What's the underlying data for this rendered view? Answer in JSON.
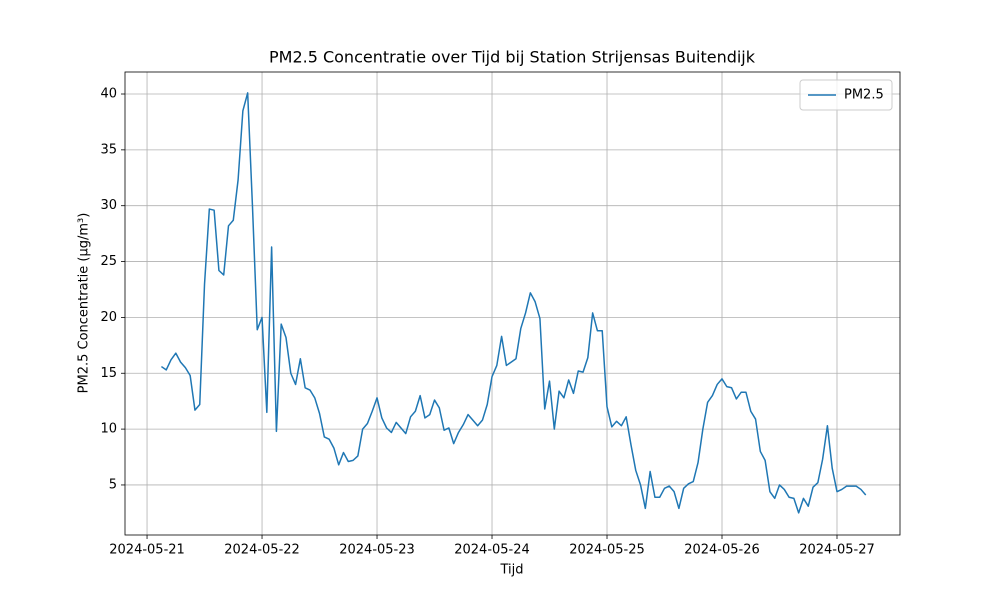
{
  "chart_data": {
    "type": "line",
    "title": "PM2.5 Concentratie over Tijd bij Station Strijensas Buitendijk",
    "x_label": "Tijd",
    "y_label": "PM2.5 Concentratie (µg/m³)",
    "x": [
      "2024-05-21 03:00",
      "2024-05-21 04:00",
      "2024-05-21 05:00",
      "2024-05-21 06:00",
      "2024-05-21 07:00",
      "2024-05-21 08:00",
      "2024-05-21 09:00",
      "2024-05-21 10:00",
      "2024-05-21 11:00",
      "2024-05-21 12:00",
      "2024-05-21 13:00",
      "2024-05-21 14:00",
      "2024-05-21 15:00",
      "2024-05-21 16:00",
      "2024-05-21 17:00",
      "2024-05-21 18:00",
      "2024-05-21 19:00",
      "2024-05-21 20:00",
      "2024-05-21 21:00",
      "2024-05-21 22:00",
      "2024-05-21 23:00",
      "2024-05-22 00:00",
      "2024-05-22 01:00",
      "2024-05-22 02:00",
      "2024-05-22 03:00",
      "2024-05-22 04:00",
      "2024-05-22 05:00",
      "2024-05-22 06:00",
      "2024-05-22 07:00",
      "2024-05-22 08:00",
      "2024-05-22 09:00",
      "2024-05-22 10:00",
      "2024-05-22 11:00",
      "2024-05-22 12:00",
      "2024-05-22 13:00",
      "2024-05-22 14:00",
      "2024-05-22 15:00",
      "2024-05-22 16:00",
      "2024-05-22 17:00",
      "2024-05-22 18:00",
      "2024-05-22 19:00",
      "2024-05-22 20:00",
      "2024-05-22 21:00",
      "2024-05-22 22:00",
      "2024-05-22 23:00",
      "2024-05-23 00:00",
      "2024-05-23 01:00",
      "2024-05-23 02:00",
      "2024-05-23 03:00",
      "2024-05-23 04:00",
      "2024-05-23 05:00",
      "2024-05-23 06:00",
      "2024-05-23 07:00",
      "2024-05-23 08:00",
      "2024-05-23 09:00",
      "2024-05-23 10:00",
      "2024-05-23 11:00",
      "2024-05-23 12:00",
      "2024-05-23 13:00",
      "2024-05-23 14:00",
      "2024-05-23 15:00",
      "2024-05-23 16:00",
      "2024-05-23 17:00",
      "2024-05-23 18:00",
      "2024-05-23 19:00",
      "2024-05-23 20:00",
      "2024-05-23 21:00",
      "2024-05-23 22:00",
      "2024-05-23 23:00",
      "2024-05-24 00:00",
      "2024-05-24 01:00",
      "2024-05-24 02:00",
      "2024-05-24 03:00",
      "2024-05-24 04:00",
      "2024-05-24 05:00",
      "2024-05-24 06:00",
      "2024-05-24 07:00",
      "2024-05-24 08:00",
      "2024-05-24 09:00",
      "2024-05-24 10:00",
      "2024-05-24 11:00",
      "2024-05-24 12:00",
      "2024-05-24 13:00",
      "2024-05-24 14:00",
      "2024-05-24 15:00",
      "2024-05-24 16:00",
      "2024-05-24 17:00",
      "2024-05-24 18:00",
      "2024-05-24 19:00",
      "2024-05-24 20:00",
      "2024-05-24 21:00",
      "2024-05-24 22:00",
      "2024-05-24 23:00",
      "2024-05-25 00:00",
      "2024-05-25 01:00",
      "2024-05-25 02:00",
      "2024-05-25 03:00",
      "2024-05-25 04:00",
      "2024-05-25 05:00",
      "2024-05-25 06:00",
      "2024-05-25 07:00",
      "2024-05-25 08:00",
      "2024-05-25 09:00",
      "2024-05-25 10:00",
      "2024-05-25 11:00",
      "2024-05-25 12:00",
      "2024-05-25 13:00",
      "2024-05-25 14:00",
      "2024-05-25 15:00",
      "2024-05-25 16:00",
      "2024-05-25 17:00",
      "2024-05-25 18:00",
      "2024-05-25 19:00",
      "2024-05-25 20:00",
      "2024-05-25 21:00",
      "2024-05-25 22:00",
      "2024-05-25 23:00",
      "2024-05-26 00:00",
      "2024-05-26 01:00",
      "2024-05-26 02:00",
      "2024-05-26 03:00",
      "2024-05-26 04:00",
      "2024-05-26 05:00",
      "2024-05-26 06:00",
      "2024-05-26 07:00",
      "2024-05-26 08:00",
      "2024-05-26 09:00",
      "2024-05-26 10:00",
      "2024-05-26 11:00",
      "2024-05-26 12:00",
      "2024-05-26 13:00",
      "2024-05-26 14:00",
      "2024-05-26 15:00",
      "2024-05-26 16:00",
      "2024-05-26 17:00",
      "2024-05-26 18:00",
      "2024-05-26 19:00",
      "2024-05-26 20:00",
      "2024-05-26 21:00",
      "2024-05-26 22:00",
      "2024-05-26 23:00",
      "2024-05-27 00:00",
      "2024-05-27 01:00",
      "2024-05-27 02:00",
      "2024-05-27 03:00",
      "2024-05-27 04:00",
      "2024-05-27 05:00",
      "2024-05-27 06:00"
    ],
    "series": [
      {
        "name": "PM2.5",
        "color": "#1f77b4",
        "values": [
          15.6,
          15.3,
          16.2,
          16.8,
          16.0,
          15.5,
          14.8,
          11.7,
          12.2,
          23.0,
          29.7,
          29.6,
          24.2,
          23.8,
          28.2,
          28.7,
          32.3,
          38.5,
          40.1,
          30.0,
          18.9,
          20.0,
          11.5,
          26.3,
          9.8,
          19.4,
          18.2,
          15.0,
          14.0,
          16.3,
          13.7,
          13.5,
          12.8,
          11.4,
          9.3,
          9.1,
          8.3,
          6.8,
          7.9,
          7.1,
          7.2,
          7.6,
          10.0,
          10.5,
          11.6,
          12.8,
          11.0,
          10.1,
          9.7,
          10.6,
          10.1,
          9.6,
          11.1,
          11.6,
          13.0,
          11.0,
          11.3,
          12.6,
          11.9,
          9.9,
          10.1,
          8.7,
          9.7,
          10.4,
          11.3,
          10.8,
          10.3,
          10.8,
          12.2,
          14.7,
          15.7,
          18.3,
          15.7,
          16.0,
          16.3,
          19.0,
          20.4,
          22.2,
          21.4,
          19.9,
          11.8,
          14.3,
          10.0,
          13.4,
          12.8,
          14.4,
          13.2,
          15.2,
          15.1,
          16.4,
          20.4,
          18.8,
          18.8,
          12.0,
          10.2,
          10.7,
          10.3,
          11.1,
          8.6,
          6.3,
          5.0,
          2.9,
          6.2,
          3.9,
          3.9,
          4.7,
          4.9,
          4.4,
          2.9,
          4.7,
          5.1,
          5.3,
          7.0,
          10.0,
          12.4,
          13.0,
          14.0,
          14.5,
          13.8,
          13.7,
          12.7,
          13.3,
          13.3,
          11.6,
          10.9,
          8.0,
          7.2,
          4.4,
          3.8,
          5.0,
          4.6,
          3.9,
          3.8,
          2.5,
          3.8,
          3.1,
          4.8,
          5.2,
          7.3,
          10.3,
          6.5,
          4.4,
          4.6,
          4.9,
          4.9,
          4.9,
          4.6,
          4.1
        ]
      }
    ],
    "xlim": [
      "2024-05-20 19:24",
      "2024-05-27 13:09"
    ],
    "xticks": [
      "2024-05-21",
      "2024-05-22",
      "2024-05-23",
      "2024-05-24",
      "2024-05-25",
      "2024-05-26",
      "2024-05-27"
    ],
    "ylim": [
      0.52,
      41.97
    ],
    "yticks": [
      5,
      10,
      15,
      20,
      25,
      30,
      35,
      40
    ],
    "grid": true,
    "legend": "upper right"
  }
}
